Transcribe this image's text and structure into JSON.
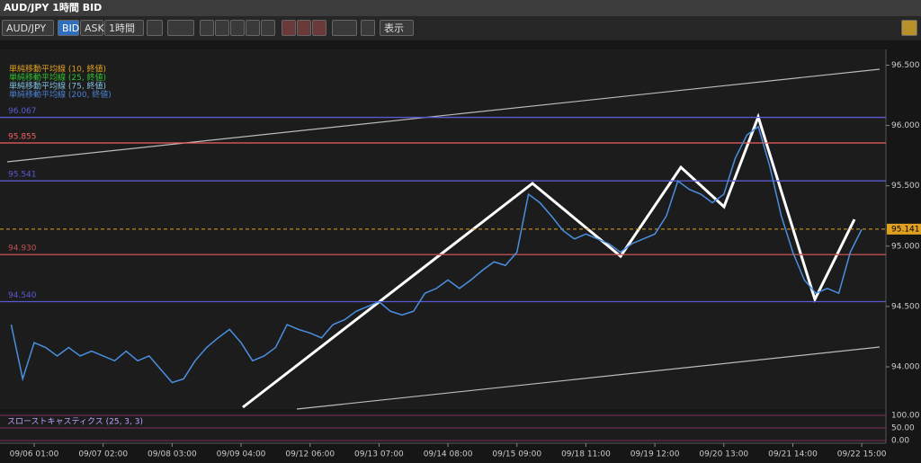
{
  "window": {
    "title": "AUD/JPY 1時間 BID",
    "symbol": "AUD/JPY",
    "bid": "BID",
    "ask": "ASK",
    "timeframe": "1時間",
    "view": "表示"
  },
  "chart_data": {
    "type": "line",
    "categories": [
      null,
      null,
      "09/06 01:00",
      null,
      null,
      null,
      null,
      null,
      "09/07 02:00",
      null,
      null,
      null,
      null,
      null,
      "09/08 03:00",
      null,
      null,
      null,
      null,
      null,
      "09/09 04:00",
      null,
      null,
      null,
      null,
      null,
      "09/12 06:00",
      null,
      null,
      null,
      null,
      null,
      "09/13 07:00",
      null,
      null,
      null,
      null,
      null,
      "09/14 08:00",
      null,
      null,
      null,
      null,
      null,
      "09/15 09:00",
      null,
      null,
      null,
      null,
      null,
      "09/18 11:00",
      null,
      null,
      null,
      null,
      null,
      "09/19 12:00",
      null,
      null,
      null,
      null,
      null,
      "09/20 13:00",
      null,
      null,
      null,
      null,
      null,
      "09/21 14:00",
      null,
      null,
      null,
      null,
      null,
      "09/22 15:00"
    ],
    "series": [
      {
        "name": "AUD/JPY",
        "color": "#4a8fe0",
        "values": [
          94.35,
          93.9,
          94.2,
          94.16,
          94.09,
          94.16,
          94.09,
          94.13,
          94.09,
          94.05,
          94.13,
          94.05,
          94.09,
          93.98,
          93.87,
          93.9,
          94.05,
          94.16,
          94.24,
          94.31,
          94.2,
          94.05,
          94.09,
          94.16,
          94.35,
          94.31,
          94.28,
          94.24,
          94.35,
          94.39,
          94.46,
          94.5,
          94.54,
          94.46,
          94.43,
          94.46,
          94.61,
          94.65,
          94.72,
          94.65,
          94.72,
          94.8,
          94.87,
          94.84,
          94.95,
          95.43,
          95.36,
          95.25,
          95.13,
          95.06,
          95.1,
          95.06,
          95.02,
          94.95,
          95.02,
          95.06,
          95.1,
          95.25,
          95.54,
          95.47,
          95.43,
          95.36,
          95.43,
          95.73,
          95.92,
          95.99,
          95.66,
          95.25,
          94.95,
          94.72,
          94.61,
          94.65,
          94.61,
          94.95,
          95.14
        ]
      }
    ],
    "ylim": [
      93.65,
      96.63
    ],
    "yticks": [
      {
        "value": 94,
        "label": "94.000"
      },
      {
        "value": 94.5,
        "label": "94.500"
      },
      {
        "value": 95,
        "label": "95.000"
      },
      {
        "value": 95.5,
        "label": "95.500"
      },
      {
        "value": 96,
        "label": "96.000"
      },
      {
        "value": 96.5,
        "label": "96.500"
      }
    ],
    "levels": [
      {
        "value": 96.067,
        "label": "96.067",
        "color": "#5a5ad0"
      },
      {
        "value": 95.855,
        "label": "95.855",
        "color": "#f06060"
      },
      {
        "value": 95.541,
        "label": "95.541",
        "color": "#5a5ad0"
      },
      {
        "value": 94.93,
        "label": "94.930",
        "color": "#c05050"
      },
      {
        "value": 94.54,
        "label": "94.540",
        "color": "#5a5ad0"
      }
    ],
    "current_price": {
      "value": 95.141,
      "label": "95.141",
      "color": "#e0a020"
    },
    "ma_legend": [
      {
        "name": "単純移動平均線 (10, 終値)",
        "color": "#e0a020"
      },
      {
        "name": "単純移動平均線 (25, 終値)",
        "color": "#30c030"
      },
      {
        "name": "単純移動平均線 (75, 終値)",
        "color": "#80c0e0"
      },
      {
        "name": "単純移動平均線 (200, 終値)",
        "color": "#4a80d0"
      }
    ],
    "stochastic": {
      "title": "スローストキャスティクス (25, 3, 3)",
      "ylim": [
        0,
        100
      ],
      "yticks": [
        {
          "value": 0,
          "label": "0.00"
        },
        {
          "value": 50,
          "label": "50.00"
        },
        {
          "value": 100,
          "label": "100.00"
        }
      ]
    }
  }
}
